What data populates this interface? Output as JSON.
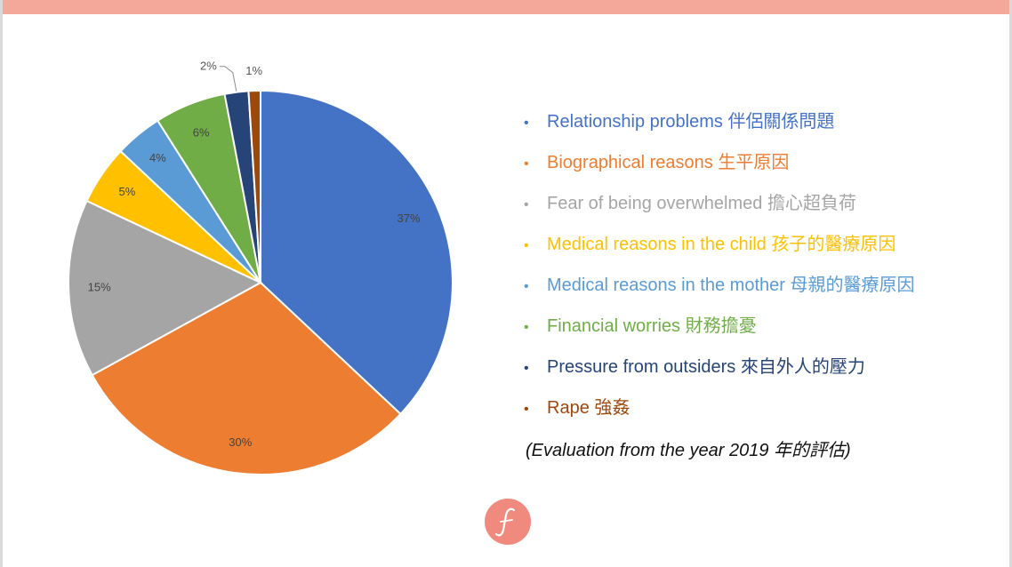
{
  "chart_data": {
    "type": "pie",
    "categories": [
      "Relationship problems 伴侶關係問題",
      "Biographical reasons 生平原因",
      "Fear of being overwhelmed 擔心超負荷",
      "Medical reasons in the child 孩子的醫療原因",
      "Medical reasons in the mother 母親的醫療原因",
      "Financial worries 財務擔憂",
      "Pressure from outsiders 來自外人的壓力",
      "Rape 強姦"
    ],
    "values": [
      37,
      30,
      15,
      5,
      4,
      6,
      2,
      1
    ],
    "labels": [
      "37%",
      "30%",
      "15%",
      "5%",
      "4%",
      "6%",
      "2%",
      "1%"
    ],
    "colors": [
      "#4472c4",
      "#ed7d31",
      "#a5a5a5",
      "#ffc000",
      "#5b9bd5",
      "#70ad47",
      "#264478",
      "#9e480e"
    ],
    "legend_placement": "right",
    "start_angle": "12 o'clock",
    "direction": "clockwise"
  },
  "note": "(Evaluation from the year 2019 年的評估)",
  "legend_bullet": "•",
  "logo_icon": "script-f-logo-icon",
  "top_bar_color": "#f4a89a"
}
